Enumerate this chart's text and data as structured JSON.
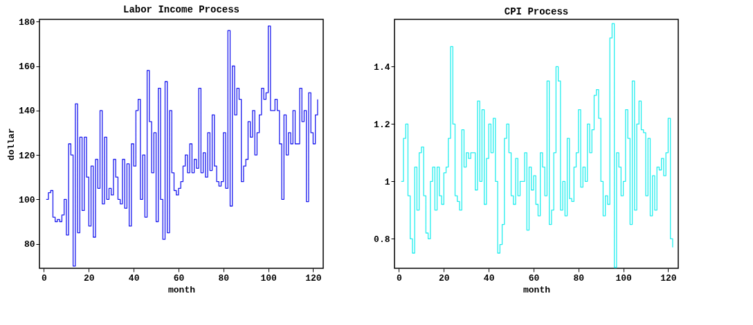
{
  "chart_data": [
    {
      "type": "step",
      "title": "Labor Income Process",
      "xlabel": "month",
      "ylabel": "dollar",
      "xlim": [
        -2,
        124.5
      ],
      "xticks": [
        0,
        20,
        40,
        60,
        80,
        100,
        120
      ],
      "ylim": [
        69,
        181
      ],
      "yticks": [
        80,
        100,
        120,
        140,
        160,
        180
      ],
      "grid": false,
      "x": [
        1,
        2,
        3,
        4,
        5,
        6,
        7,
        8,
        9,
        10,
        11,
        12,
        13,
        14,
        15,
        16,
        17,
        18,
        19,
        20,
        21,
        22,
        23,
        24,
        25,
        26,
        27,
        28,
        29,
        30,
        31,
        32,
        33,
        34,
        35,
        36,
        37,
        38,
        39,
        40,
        41,
        42,
        43,
        44,
        45,
        46,
        47,
        48,
        49,
        50,
        51,
        52,
        53,
        54,
        55,
        56,
        57,
        58,
        59,
        60,
        61,
        62,
        63,
        64,
        65,
        66,
        67,
        68,
        69,
        70,
        71,
        72,
        73,
        74,
        75,
        76,
        77,
        78,
        79,
        80,
        81,
        82,
        83,
        84,
        85,
        86,
        87,
        88,
        89,
        90,
        91,
        92,
        93,
        94,
        95,
        96,
        97,
        98,
        99,
        100,
        101,
        102,
        103,
        104,
        105,
        106,
        107,
        108,
        109,
        110,
        111,
        112,
        113,
        114,
        115,
        116,
        117,
        118,
        119,
        120,
        121,
        122
      ],
      "series": [
        {
          "color": "#1a1aee",
          "values": [
            100,
            103,
            104,
            92,
            90,
            91,
            90,
            93,
            100,
            84,
            125,
            120,
            70,
            143,
            85,
            128,
            95,
            128,
            110,
            88,
            115,
            83,
            118,
            105,
            140,
            98,
            128,
            100,
            105,
            102,
            118,
            110,
            100,
            98,
            118,
            96,
            116,
            88,
            125,
            115,
            140,
            145,
            100,
            120,
            92,
            158,
            135,
            112,
            130,
            90,
            150,
            100,
            82,
            153,
            85,
            140,
            112,
            104,
            102,
            105,
            108,
            115,
            120,
            112,
            125,
            112,
            118,
            114,
            150,
            112,
            121,
            110,
            130,
            113,
            138,
            115,
            108,
            106,
            108,
            130,
            105,
            176,
            97,
            160,
            138,
            150,
            145,
            108,
            115,
            118,
            135,
            128,
            140,
            120,
            130,
            138,
            150,
            145,
            148,
            178,
            140,
            140,
            145,
            140,
            125,
            100,
            138,
            120,
            130,
            125,
            140,
            125,
            125,
            150,
            135,
            140,
            99,
            148,
            130,
            125,
            138,
            145
          ]
        }
      ]
    },
    {
      "type": "step",
      "title": "CPI Process",
      "xlabel": "month",
      "xlim": [
        -2,
        124.5
      ],
      "xticks": [
        0,
        20,
        40,
        60,
        80,
        100,
        120
      ],
      "ylim": [
        0.697,
        1.565
      ],
      "yticks": [
        0.8,
        1,
        1.2,
        1.4
      ],
      "grid": false,
      "x": [
        1,
        2,
        3,
        4,
        5,
        6,
        7,
        8,
        9,
        10,
        11,
        12,
        13,
        14,
        15,
        16,
        17,
        18,
        19,
        20,
        21,
        22,
        23,
        24,
        25,
        26,
        27,
        28,
        29,
        30,
        31,
        32,
        33,
        34,
        35,
        36,
        37,
        38,
        39,
        40,
        41,
        42,
        43,
        44,
        45,
        46,
        47,
        48,
        49,
        50,
        51,
        52,
        53,
        54,
        55,
        56,
        57,
        58,
        59,
        60,
        61,
        62,
        63,
        64,
        65,
        66,
        67,
        68,
        69,
        70,
        71,
        72,
        73,
        74,
        75,
        76,
        77,
        78,
        79,
        80,
        81,
        82,
        83,
        84,
        85,
        86,
        87,
        88,
        89,
        90,
        91,
        92,
        93,
        94,
        95,
        96,
        97,
        98,
        99,
        100,
        101,
        102,
        103,
        104,
        105,
        106,
        107,
        108,
        109,
        110,
        111,
        112,
        113,
        114,
        115,
        116,
        117,
        118,
        119,
        120,
        121,
        122
      ],
      "series": [
        {
          "color": "#22eeee",
          "values": [
            1.0,
            1.15,
            1.2,
            0.95,
            0.8,
            0.75,
            1.05,
            0.9,
            1.1,
            1.12,
            0.95,
            0.82,
            0.8,
            1.0,
            1.05,
            0.9,
            1.05,
            0.95,
            0.92,
            1.03,
            1.05,
            1.15,
            1.47,
            1.2,
            0.95,
            0.93,
            0.9,
            1.18,
            1.05,
            1.1,
            1.08,
            1.1,
            1.1,
            0.97,
            1.28,
            1.0,
            1.25,
            0.92,
            1.08,
            1.2,
            1.1,
            1.22,
            1.0,
            0.75,
            0.78,
            0.85,
            1.15,
            1.2,
            1.1,
            0.95,
            0.92,
            1.08,
            0.95,
            1.0,
            1.0,
            1.1,
            0.83,
            1.05,
            0.97,
            1.02,
            0.92,
            0.88,
            1.1,
            1.05,
            0.95,
            1.35,
            0.85,
            0.9,
            1.1,
            1.4,
            1.35,
            0.9,
            1.0,
            0.88,
            1.15,
            0.94,
            0.93,
            1.05,
            1.1,
            1.25,
            0.98,
            1.05,
            1.0,
            1.2,
            1.1,
            1.18,
            1.3,
            1.32,
            1.22,
            1.0,
            0.88,
            0.95,
            0.92,
            1.5,
            1.55,
            0.7,
            1.1,
            1.05,
            0.95,
            1.0,
            1.25,
            1.15,
            0.85,
            1.35,
            0.9,
            1.2,
            1.28,
            1.18,
            1.17,
            0.95,
            1.15,
            0.88,
            1.02,
            0.9,
            1.05,
            1.04,
            1.08,
            1.02,
            1.1,
            1.22,
            0.8,
            0.77
          ]
        }
      ]
    }
  ]
}
